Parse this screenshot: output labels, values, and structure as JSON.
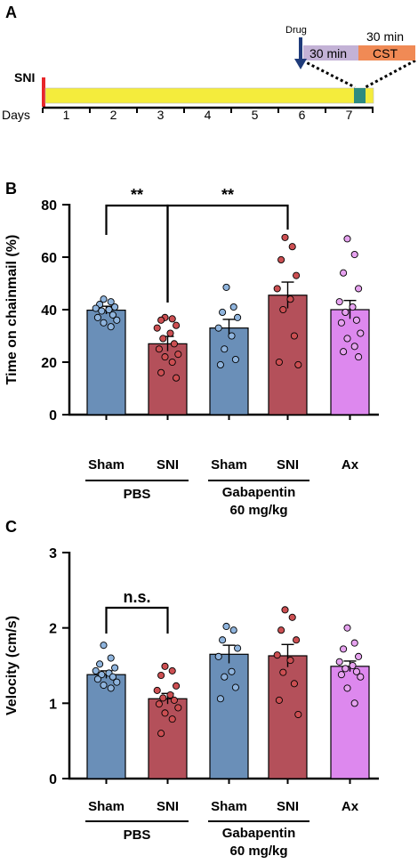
{
  "panels": {
    "a": "A",
    "b": "B",
    "c": "C"
  },
  "timeline": {
    "snil_label": "SNI",
    "days_label": "Days",
    "days": [
      "1",
      "2",
      "3",
      "4",
      "5",
      "6",
      "7"
    ],
    "drug_label": "Drug",
    "pre_label": "30 min",
    "cst_top_label": "30 min",
    "cst_label": "CST",
    "colors": {
      "timeline": "#f4ec3c",
      "sni_mark": "#e8262a",
      "drug_box": "#c3b2d6",
      "cst_box": "#f08a55",
      "test_mark": "#2e8b80",
      "arrow": "#1f3b7a"
    }
  },
  "colors": {
    "sham": "#6a8fb8",
    "sni": "#b4505a",
    "ax": "#dd88ee",
    "sham_dot": "#8fb4dd",
    "sni_dot": "#cc4f52",
    "ax_dot": "#e6a2ef"
  },
  "groups": {
    "pbs": "PBS",
    "gabapentin_l1": "Gabapentin",
    "gabapentin_l2": "60 mg/kg"
  },
  "chart_data": [
    {
      "type": "bar",
      "ylabel": "Time on chainmail (%)",
      "ylim": [
        0,
        80
      ],
      "yticks": [
        "0",
        "20",
        "40",
        "60",
        "80"
      ],
      "categories": [
        "Sham",
        "SNI",
        "Sham",
        "SNI",
        "Ax"
      ],
      "values": [
        39.8,
        27.0,
        33.0,
        45.5,
        40.0
      ],
      "sem": [
        1.5,
        2.8,
        3.3,
        5.0,
        3.5
      ],
      "points": [
        [
          44,
          43,
          42,
          41,
          40.5,
          40,
          39.5,
          38,
          37,
          36,
          35,
          33.5
        ],
        [
          37,
          36.5,
          36,
          34,
          33,
          31,
          29,
          27,
          25,
          23,
          22,
          20,
          16,
          14
        ],
        [
          48.5,
          41,
          39,
          37,
          33,
          30,
          25,
          21,
          19
        ],
        [
          67.5,
          64,
          59,
          53,
          48,
          44,
          40,
          30,
          20,
          19
        ],
        [
          67,
          61,
          54,
          48,
          43,
          41,
          39,
          36,
          35,
          31,
          29,
          26,
          24,
          22
        ]
      ],
      "significance": [
        {
          "from": 0,
          "to": 1,
          "label": "**"
        },
        {
          "from": 1,
          "to": 3,
          "label": "**"
        }
      ]
    },
    {
      "type": "bar",
      "ylabel": "Velocity (cm/s)",
      "ylim": [
        0,
        3
      ],
      "yticks": [
        "0",
        "1",
        "2",
        "3"
      ],
      "categories": [
        "Sham",
        "SNI",
        "Sham",
        "SNI",
        "Ax"
      ],
      "values": [
        1.38,
        1.06,
        1.65,
        1.63,
        1.49
      ],
      "sem": [
        0.05,
        0.07,
        0.12,
        0.15,
        0.07
      ],
      "points": [
        [
          1.77,
          1.6,
          1.52,
          1.47,
          1.43,
          1.4,
          1.38,
          1.35,
          1.32,
          1.28,
          1.24,
          1.2
        ],
        [
          1.49,
          1.43,
          1.37,
          1.23,
          1.17,
          1.11,
          1.07,
          1.04,
          0.99,
          0.94,
          0.87,
          0.79,
          0.6
        ],
        [
          2.02,
          1.97,
          1.84,
          1.73,
          1.62,
          1.42,
          1.35,
          1.21,
          1.06
        ],
        [
          2.24,
          2.14,
          1.97,
          1.84,
          1.64,
          1.57,
          1.41,
          1.26,
          1.04,
          0.85
        ],
        [
          2.0,
          1.8,
          1.72,
          1.62,
          1.55,
          1.5,
          1.46,
          1.42,
          1.38,
          1.35,
          1.2,
          1.0
        ]
      ],
      "significance": [
        {
          "from": 0,
          "to": 1,
          "label": "n.s."
        }
      ]
    }
  ]
}
